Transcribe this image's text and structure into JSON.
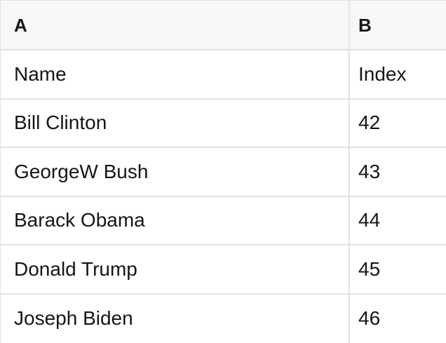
{
  "table": {
    "columns": [
      {
        "label": "A"
      },
      {
        "label": "B"
      }
    ],
    "rows": [
      [
        "Name",
        "Index"
      ],
      [
        "Bill Clinton",
        "42"
      ],
      [
        "GeorgeW Bush",
        "43"
      ],
      [
        "Barack Obama",
        "44"
      ],
      [
        "Donald Trump",
        "45"
      ],
      [
        "Joseph Biden",
        "46"
      ]
    ]
  },
  "colors": {
    "header_bg": "#f7f7f7",
    "border": "#e2e2e2",
    "text": "#161616",
    "cell_bg": "#ffffff"
  }
}
